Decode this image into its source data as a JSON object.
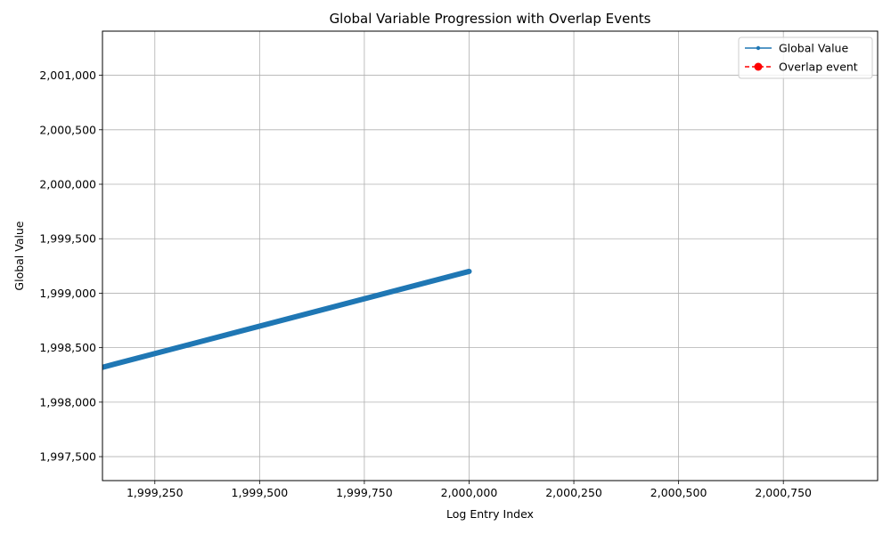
{
  "chart_data": {
    "type": "line",
    "title": "Global Variable Progression with Overlap Events",
    "xlabel": "Log Entry Index",
    "ylabel": "Global Value",
    "xlim": [
      1999125,
      2000975
    ],
    "ylim": [
      1997280,
      2001405
    ],
    "xticks": [
      1999250,
      1999500,
      1999750,
      2000000,
      2000250,
      2000500,
      2000750
    ],
    "xtick_labels": [
      "1,999,250",
      "1,999,500",
      "1,999,750",
      "2,000,000",
      "2,000,250",
      "2,000,500",
      "2,000,750"
    ],
    "yticks": [
      1997500,
      1998000,
      1998500,
      1999000,
      1999500,
      2000000,
      2000500,
      2001000
    ],
    "ytick_labels": [
      "1,997,500",
      "1,998,000",
      "1,998,500",
      "1,999,000",
      "1,999,500",
      "2,000,000",
      "2,000,500",
      "2,001,000"
    ],
    "grid": true,
    "legend_position": "top-right",
    "series": [
      {
        "name": "Global Value",
        "color": "#1f77b4",
        "style": "line-with-small-dots",
        "x": [
          1999125,
          2000000
        ],
        "y": [
          1998320,
          1999200
        ]
      },
      {
        "name": "Overlap event",
        "color": "#ff0000",
        "style": "dashed-with-markers",
        "x": [],
        "y": []
      }
    ]
  }
}
